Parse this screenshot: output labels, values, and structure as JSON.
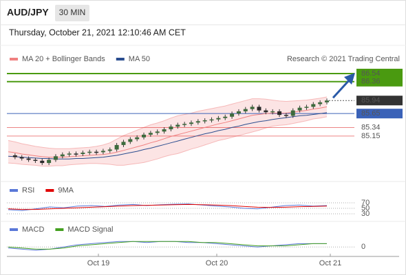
{
  "header": {
    "symbol": "AUD/JPY",
    "timeframe": "30 MIN",
    "datetime": "Thursday, October 21, 2021 12:10:46 AM CET"
  },
  "chart_data": [
    {
      "type": "candlestick",
      "credit": "Research © 2021 Trading Central",
      "closes": [
        84.72,
        84.68,
        84.65,
        84.62,
        84.6,
        84.55,
        84.62,
        84.7,
        84.74,
        84.76,
        84.75,
        84.78,
        84.8,
        84.79,
        84.82,
        84.85,
        84.95,
        85.02,
        85.08,
        85.12,
        85.18,
        85.22,
        85.25,
        85.3,
        85.36,
        85.4,
        85.42,
        85.45,
        85.48,
        85.5,
        85.52,
        85.55,
        85.58,
        85.65,
        85.7,
        85.75,
        85.8,
        85.72,
        85.68,
        85.7,
        85.62,
        85.6,
        85.72,
        85.78,
        85.8,
        85.86,
        85.9,
        85.94
      ],
      "series": [
        {
          "name": "MA 20 + Bollinger Bands",
          "color": "#f08080",
          "values": [
            84.8,
            84.78,
            84.75,
            84.73,
            84.71,
            84.69,
            84.68,
            84.68,
            84.68,
            84.69,
            84.7,
            84.71,
            84.72,
            84.73,
            84.74,
            84.76,
            84.79,
            84.83,
            84.87,
            84.91,
            84.95,
            85.0,
            85.04,
            85.09,
            85.14,
            85.18,
            85.22,
            85.26,
            85.3,
            85.34,
            85.38,
            85.42,
            85.45,
            85.49,
            85.53,
            85.57,
            85.61,
            85.63,
            85.65,
            85.66,
            85.66,
            85.66,
            85.68,
            85.7,
            85.72,
            85.75,
            85.77,
            85.8
          ],
          "upper": [
            85.05,
            85.02,
            84.98,
            84.95,
            84.92,
            84.9,
            84.88,
            84.87,
            84.87,
            84.87,
            84.88,
            84.89,
            84.9,
            84.92,
            84.95,
            85.0,
            85.08,
            85.16,
            85.22,
            85.28,
            85.34,
            85.4,
            85.44,
            85.49,
            85.55,
            85.6,
            85.63,
            85.66,
            85.7,
            85.73,
            85.76,
            85.79,
            85.82,
            85.86,
            85.9,
            85.94,
            85.98,
            85.98,
            85.97,
            85.95,
            85.93,
            85.92,
            85.93,
            85.94,
            85.95,
            85.97,
            85.99,
            86.02
          ],
          "lower": [
            84.55,
            84.54,
            84.52,
            84.51,
            84.5,
            84.48,
            84.48,
            84.49,
            84.49,
            84.51,
            84.52,
            84.53,
            84.54,
            84.54,
            84.53,
            84.52,
            84.5,
            84.5,
            84.52,
            84.54,
            84.56,
            84.6,
            84.64,
            84.69,
            84.73,
            84.76,
            84.81,
            84.86,
            84.9,
            84.95,
            85.0,
            85.05,
            85.08,
            85.12,
            85.16,
            85.2,
            85.24,
            85.28,
            85.33,
            85.37,
            85.39,
            85.4,
            85.43,
            85.46,
            85.49,
            85.53,
            85.55,
            85.58
          ]
        },
        {
          "name": "MA 50",
          "color": "#2a4d8f",
          "values": [
            84.7,
            84.69,
            84.68,
            84.67,
            84.66,
            84.65,
            84.65,
            84.64,
            84.64,
            84.64,
            84.65,
            84.65,
            84.66,
            84.67,
            84.68,
            84.7,
            84.72,
            84.75,
            84.78,
            84.81,
            84.85,
            84.88,
            84.92,
            84.96,
            85.0,
            85.04,
            85.08,
            85.12,
            85.16,
            85.2,
            85.23,
            85.27,
            85.3,
            85.34,
            85.37,
            85.41,
            85.44,
            85.47,
            85.49,
            85.52,
            85.54,
            85.56,
            85.58,
            85.6,
            85.61,
            85.63,
            85.65,
            85.67
          ]
        }
      ],
      "levels": [
        {
          "value": 86.54,
          "color": "#4a9a10",
          "box": true
        },
        {
          "value": 86.36,
          "color": "#4a9a10",
          "box": true
        },
        {
          "value": 85.94,
          "color": "#333333",
          "box": true
        },
        {
          "value": 85.65,
          "color": "#3a62b8",
          "box": true
        },
        {
          "value": 85.34,
          "color": "#e03030",
          "box": false
        },
        {
          "value": 85.15,
          "color": "#e03030",
          "box": false
        }
      ],
      "ylim": [
        84.23,
        86.8
      ],
      "x_labels": [
        "Oct 19",
        "Oct 20",
        "Oct 21"
      ]
    },
    {
      "type": "line",
      "ylim": [
        0,
        100
      ],
      "yticks": [
        70,
        50,
        30
      ],
      "series": [
        {
          "name": "RSI",
          "color": "#5a78d8",
          "values": [
            45,
            42,
            48,
            55,
            52,
            58,
            60,
            57,
            62,
            64,
            60,
            63,
            65,
            66,
            62,
            58,
            55,
            50,
            48,
            54,
            60,
            62,
            58,
            60
          ]
        },
        {
          "name": "9MA",
          "color": "#e00000",
          "values": [
            48,
            46,
            46,
            48,
            50,
            52,
            54,
            56,
            58,
            60,
            61,
            62,
            63,
            64,
            63,
            62,
            60,
            57,
            54,
            53,
            54,
            56,
            57,
            58
          ]
        }
      ]
    },
    {
      "type": "line",
      "ylim": [
        -0.08,
        0.12
      ],
      "yticks": [
        0
      ],
      "series": [
        {
          "name": "MACD",
          "color": "#5a78d8",
          "values": [
            -0.01,
            -0.02,
            -0.03,
            -0.02,
            0.0,
            0.02,
            0.03,
            0.04,
            0.05,
            0.05,
            0.04,
            0.05,
            0.05,
            0.04,
            0.04,
            0.03,
            0.02,
            0.01,
            0.0,
            0.01,
            0.02,
            0.03,
            0.03,
            0.03
          ]
        },
        {
          "name": "MACD Signal",
          "color": "#44a020",
          "values": [
            0.0,
            -0.01,
            -0.02,
            -0.02,
            -0.01,
            0.01,
            0.02,
            0.03,
            0.04,
            0.05,
            0.05,
            0.05,
            0.05,
            0.05,
            0.04,
            0.04,
            0.03,
            0.02,
            0.01,
            0.01,
            0.01,
            0.02,
            0.03,
            0.03
          ]
        }
      ]
    }
  ]
}
